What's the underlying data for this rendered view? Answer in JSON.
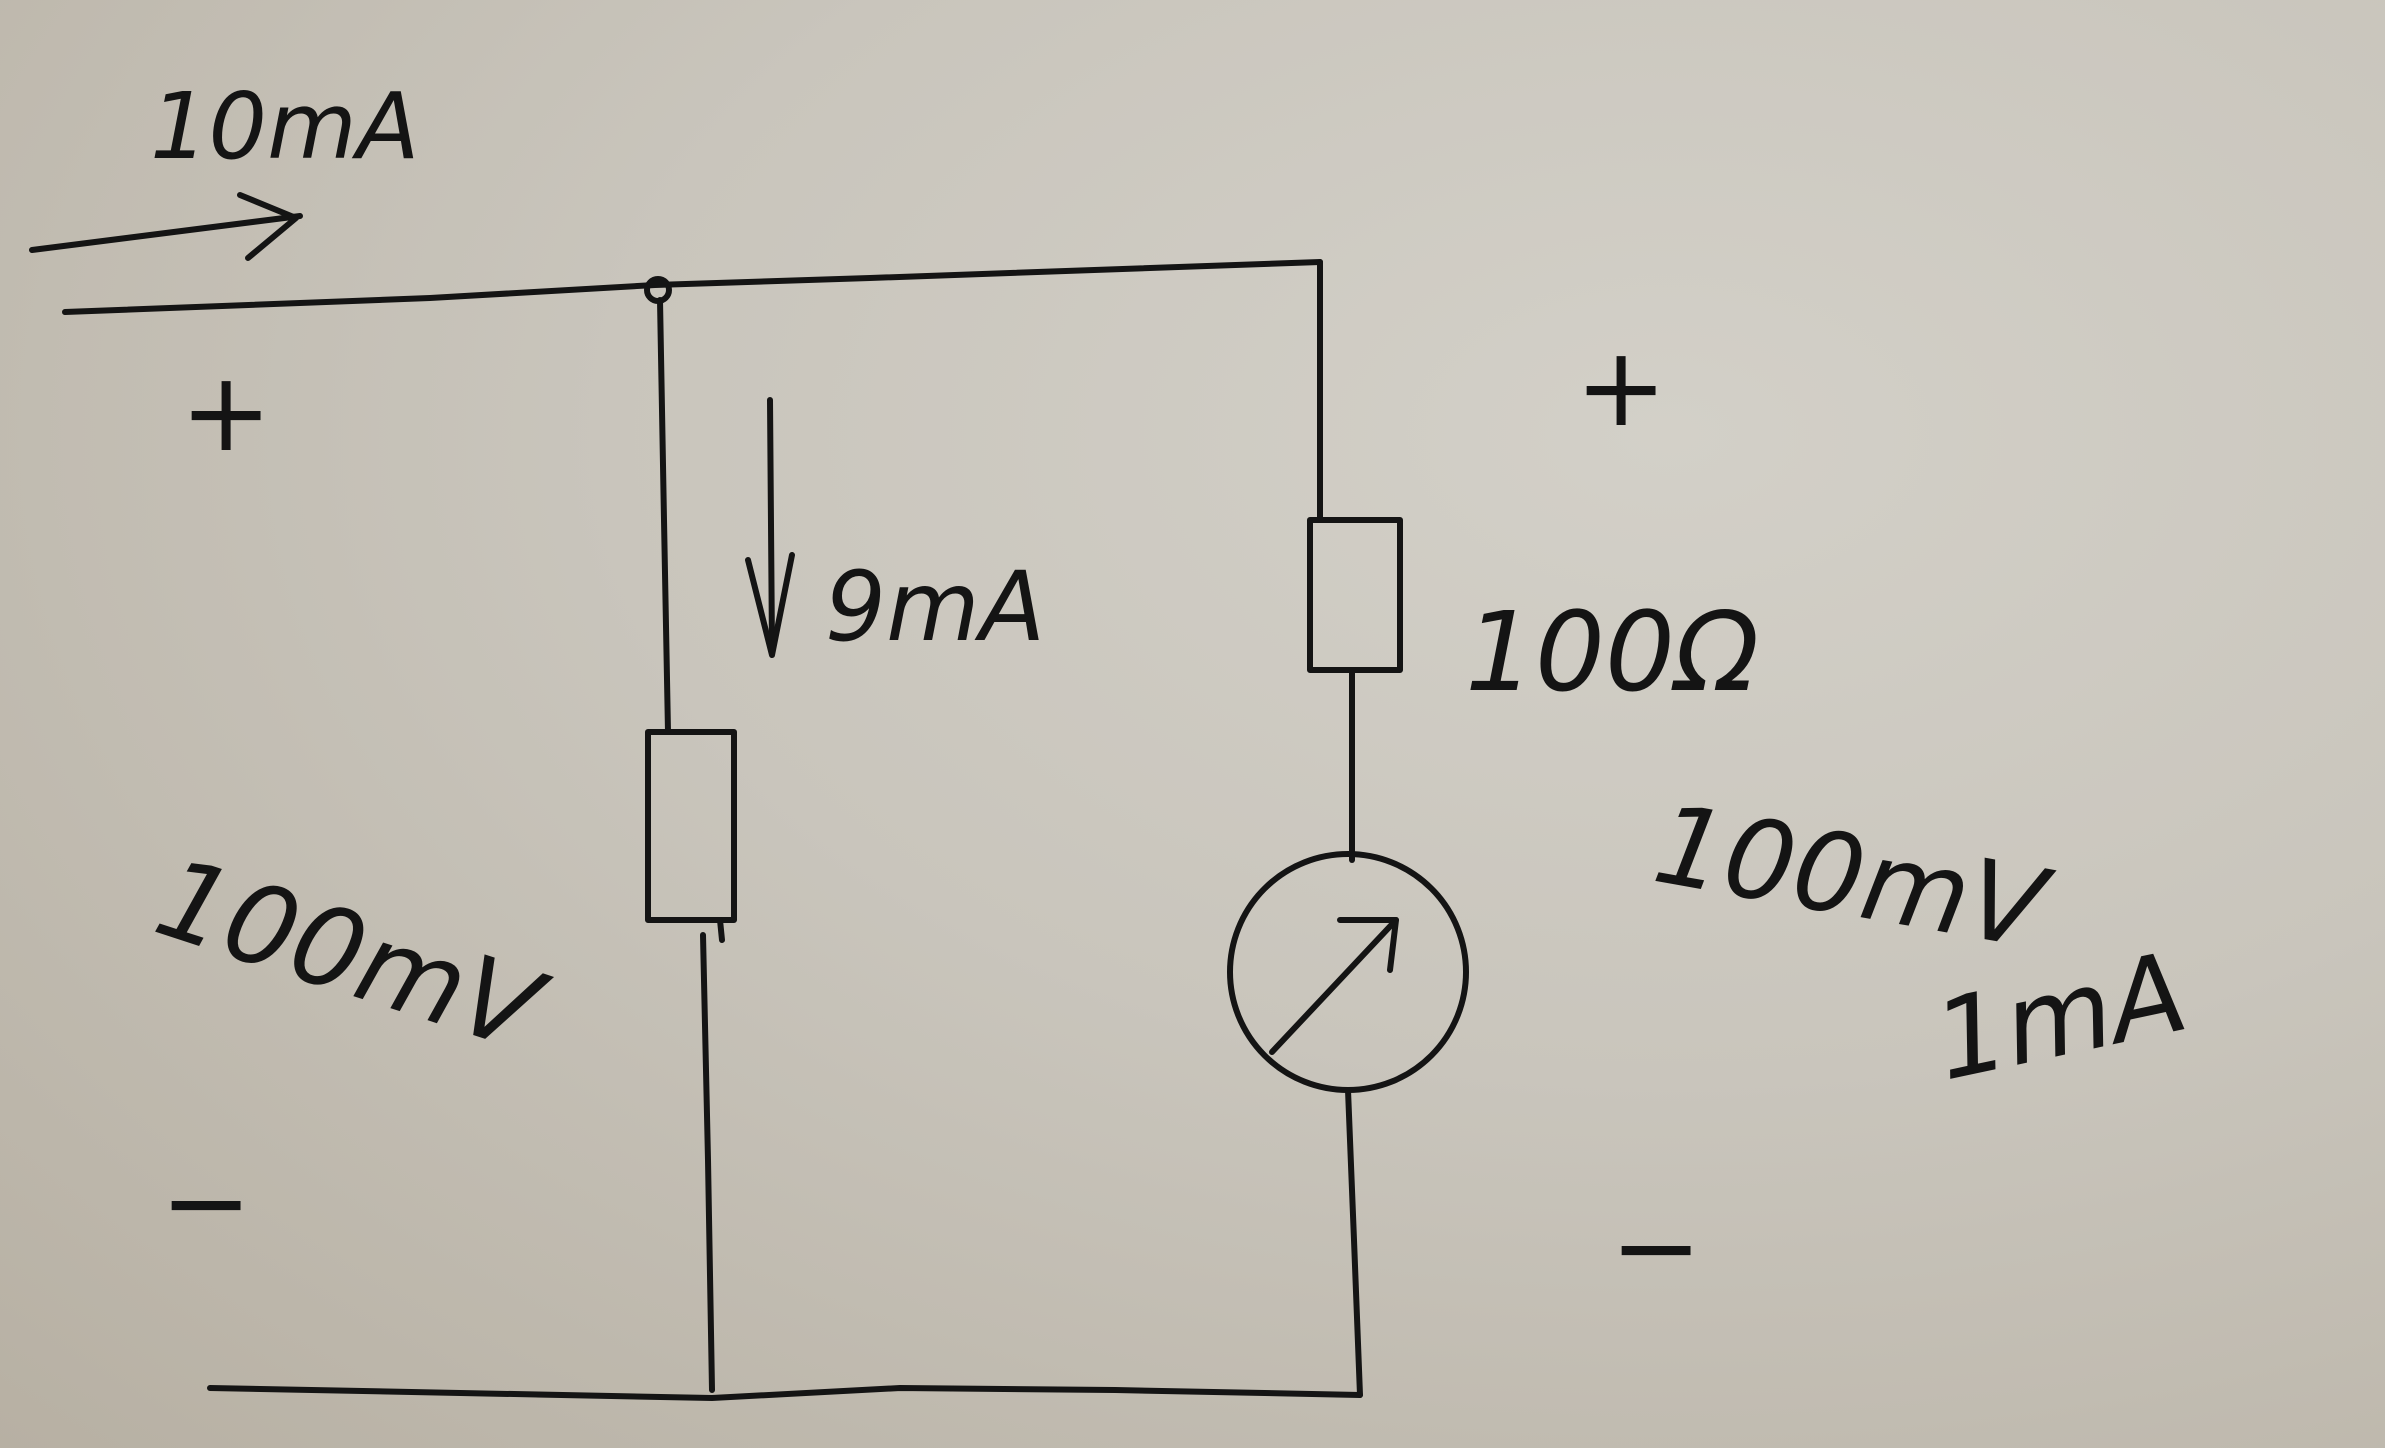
{
  "labels": {
    "input_current": "10mA",
    "shunt_current": "9mA",
    "meter_resistance": "100Ω",
    "meter_voltage": "100mV",
    "meter_current": "1mA",
    "input_voltage": "100mV",
    "plus_left": "+",
    "minus_left": "−",
    "plus_right": "+",
    "minus_right": "−"
  },
  "ink_color": "#141414"
}
